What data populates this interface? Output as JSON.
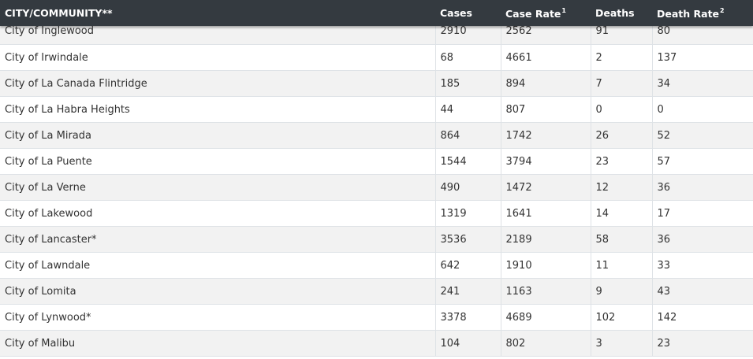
{
  "table": {
    "headers": {
      "city": "CITY/COMMUNITY**",
      "cases": "Cases",
      "case_rate": "Case Rate",
      "case_rate_sup": "1",
      "deaths": "Deaths",
      "death_rate": "Death Rate",
      "death_rate_sup": "2"
    },
    "rows": [
      {
        "city": "City of Inglewood",
        "cases": "2910",
        "case_rate": "2562",
        "deaths": "91",
        "death_rate": "80"
      },
      {
        "city": "City of Irwindale",
        "cases": "68",
        "case_rate": "4661",
        "deaths": "2",
        "death_rate": "137"
      },
      {
        "city": "City of La Canada Flintridge",
        "cases": "185",
        "case_rate": "894",
        "deaths": "7",
        "death_rate": "34"
      },
      {
        "city": "City of La Habra Heights",
        "cases": "44",
        "case_rate": "807",
        "deaths": "0",
        "death_rate": "0"
      },
      {
        "city": "City of La Mirada",
        "cases": "864",
        "case_rate": "1742",
        "deaths": "26",
        "death_rate": "52"
      },
      {
        "city": "City of La Puente",
        "cases": "1544",
        "case_rate": "3794",
        "deaths": "23",
        "death_rate": "57"
      },
      {
        "city": "City of La Verne",
        "cases": "490",
        "case_rate": "1472",
        "deaths": "12",
        "death_rate": "36"
      },
      {
        "city": "City of Lakewood",
        "cases": "1319",
        "case_rate": "1641",
        "deaths": "14",
        "death_rate": "17"
      },
      {
        "city": "City of Lancaster*",
        "cases": "3536",
        "case_rate": "2189",
        "deaths": "58",
        "death_rate": "36"
      },
      {
        "city": "City of Lawndale",
        "cases": "642",
        "case_rate": "1910",
        "deaths": "11",
        "death_rate": "33"
      },
      {
        "city": "City of Lomita",
        "cases": "241",
        "case_rate": "1163",
        "deaths": "9",
        "death_rate": "43"
      },
      {
        "city": "City of Lynwood*",
        "cases": "3378",
        "case_rate": "4689",
        "deaths": "102",
        "death_rate": "142"
      },
      {
        "city": "City of Malibu",
        "cases": "104",
        "case_rate": "802",
        "deaths": "3",
        "death_rate": "23"
      }
    ]
  }
}
